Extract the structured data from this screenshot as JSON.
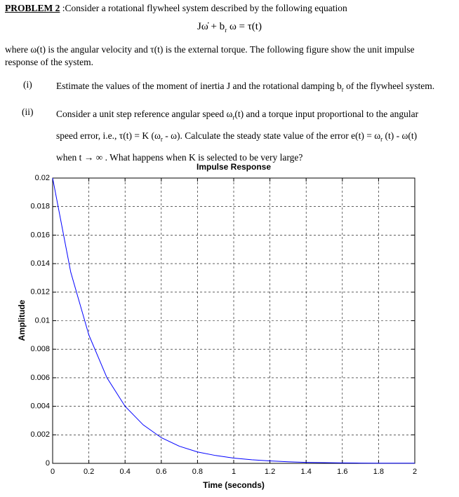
{
  "problem": {
    "label": "PROBLEM 2",
    "intro": " :Consider a rotational flywheel system described by the following equation"
  },
  "equation": [
    "Jω̇ + b",
    {
      "sub": "r"
    },
    " ω = τ(t)"
  ],
  "paragraph": "where ω(t) is the angular velocity and τ(t) is the external torque. The following figure show the unit impulse response of the system.",
  "items": [
    {
      "label": "(i)",
      "text": [
        "Estimate the values of the moment of inertia J and the rotational damping b",
        {
          "sub": "r"
        },
        " of the flywheel system."
      ]
    },
    {
      "label": "(ii)",
      "text": [
        "Consider a unit step reference angular speed ω",
        {
          "sub": "r"
        },
        "(t) and a torque input proportional to the angular speed error, i.e., τ(t) = K (ω",
        {
          "sub": "r"
        },
        " - ω). Calculate the steady state value of the error e(t) = ω",
        {
          "sub": "r"
        },
        " (t) - ω(t) when t → ∞ . What happens when K is selected to be very large?"
      ]
    }
  ],
  "chart_data": {
    "type": "line",
    "title": "Impulse Response",
    "x_label": "Time (seconds)",
    "y_label": "Amplitude",
    "x": [
      0,
      0.1,
      0.2,
      0.3,
      0.4,
      0.5,
      0.6,
      0.7,
      0.8,
      0.9,
      1.0,
      1.1,
      1.2,
      1.3,
      1.4,
      1.5,
      1.6,
      1.7,
      1.8,
      1.9,
      2.0
    ],
    "values": [
      0.02,
      0.0134,
      0.009,
      0.006,
      0.004,
      0.0027,
      0.0018,
      0.0012,
      0.0008,
      0.00055,
      0.00037,
      0.00025,
      0.00017,
      0.00011,
      7e-05,
      5e-05,
      3e-05,
      2e-05,
      1e-05,
      1e-05,
      1e-05
    ],
    "color": "#0000ff",
    "xlim": [
      0,
      2
    ],
    "ylim": [
      0,
      0.02
    ],
    "xticks": [
      0,
      0.2,
      0.4,
      0.6,
      0.8,
      1,
      1.2,
      1.4,
      1.6,
      1.8,
      2
    ],
    "yticks": [
      0,
      0.002,
      0.004,
      0.006,
      0.008,
      0.01,
      0.012,
      0.014,
      0.016,
      0.018,
      0.02
    ],
    "grid": true
  }
}
